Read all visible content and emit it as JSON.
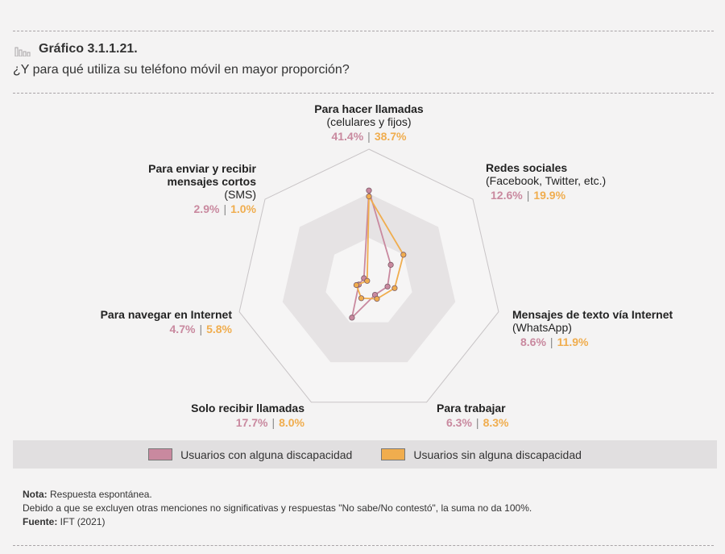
{
  "header": {
    "chart_number": "Gráfico 3.1.1.21.",
    "question": "¿Y para qué utiliza su teléfono móvil en mayor proporción?"
  },
  "chart_data": {
    "type": "radar",
    "categories": [
      {
        "bold": "Para hacer llamadas",
        "normal": "(celulares y fijos)"
      },
      {
        "bold": "Redes sociales",
        "normal": "(Facebook, Twitter, etc.)"
      },
      {
        "bold": "Mensajes de texto vía Internet",
        "normal": "(WhatsApp)"
      },
      {
        "bold": "Para trabajar",
        "normal": ""
      },
      {
        "bold": "Solo recibir llamadas",
        "normal": ""
      },
      {
        "bold": "Para navegar en Internet",
        "normal": ""
      },
      {
        "bold": "Para enviar y recibir mensajes cortos",
        "normal": "(SMS)"
      }
    ],
    "series": [
      {
        "name": "Usuarios con alguna discapacidad",
        "color": "#c9899f",
        "values": [
          41.4,
          12.6,
          8.6,
          6.3,
          17.7,
          4.7,
          2.9
        ],
        "labels": [
          "41.4%",
          "12.6%",
          "8.6%",
          "6.3%",
          "17.7%",
          "4.7%",
          "2.9%"
        ]
      },
      {
        "name": "Usuarios sin alguna discapacidad",
        "color": "#f0ad4e",
        "values": [
          38.7,
          19.9,
          11.9,
          8.3,
          8.0,
          5.8,
          1.0
        ],
        "labels": [
          "38.7%",
          "19.9%",
          "11.9%",
          "8.3%",
          "8.0%",
          "5.8%",
          "1.0%"
        ]
      }
    ],
    "rmax": 60,
    "ring_count": 3
  },
  "notes": {
    "nota_label": "Nota:",
    "nota_text": " Respuesta espontánea.",
    "line2": "Debido a que se excluyen otras menciones no significativas y respuestas \"No sabe/No contestó\", la suma no da 100%.",
    "fuente_label": "Fuente:",
    "fuente_text": " IFT (2021)"
  }
}
